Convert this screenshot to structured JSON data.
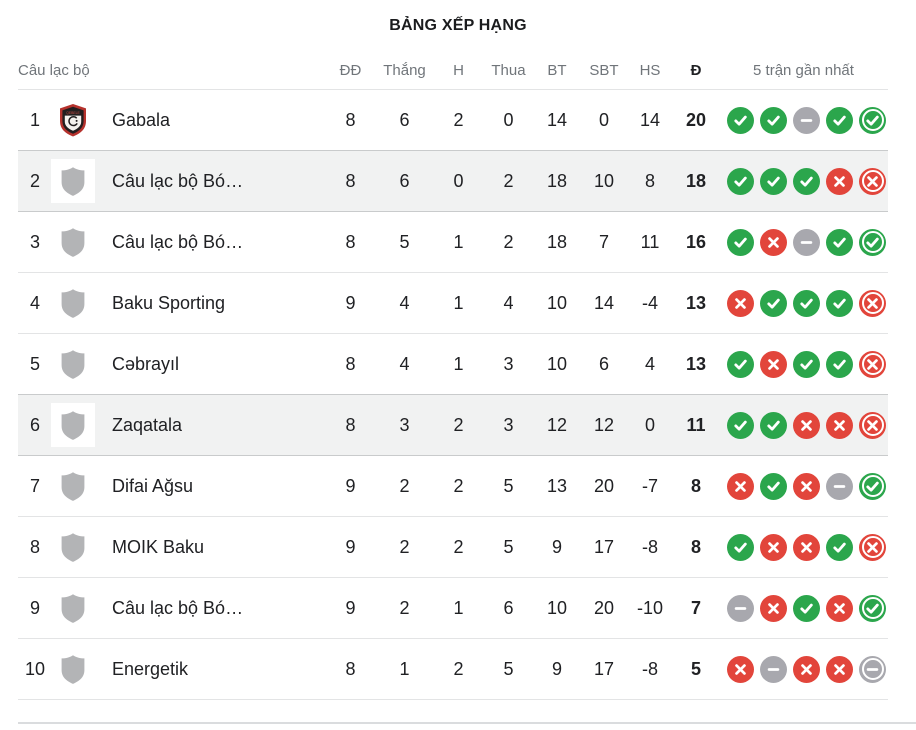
{
  "title": "BẢNG XẾP HẠNG",
  "columns": {
    "club": "Câu lạc bộ",
    "played": "ĐĐ",
    "wins": "Thắng",
    "draws": "H",
    "losses": "Thua",
    "goals_for": "BT",
    "goals_against": "SBT",
    "goal_diff": "HS",
    "points": "Đ",
    "form": "5 trận gần nhất"
  },
  "colors": {
    "win": "#2ba64c",
    "loss": "#e2453b",
    "draw": "#a8a8ae",
    "highlight": "#f1f2f2"
  },
  "table": {
    "rows": [
      {
        "rank": "1",
        "name": "Gabala",
        "logo": "gabala-crest",
        "highlighted": false,
        "played": "8",
        "wins": "6",
        "draws": "2",
        "losses": "0",
        "goals_for": "14",
        "goals_against": "0",
        "goal_diff": "14",
        "points": "20",
        "form": [
          "W",
          "W",
          "D",
          "W",
          "W"
        ]
      },
      {
        "rank": "2",
        "name": "Câu lạc bộ Bó…",
        "logo": "generic-shield",
        "highlighted": true,
        "played": "8",
        "wins": "6",
        "draws": "0",
        "losses": "2",
        "goals_for": "18",
        "goals_against": "10",
        "goal_diff": "8",
        "points": "18",
        "form": [
          "W",
          "W",
          "W",
          "L",
          "L"
        ]
      },
      {
        "rank": "3",
        "name": "Câu lạc bộ Bó…",
        "logo": "generic-shield",
        "highlighted": false,
        "played": "8",
        "wins": "5",
        "draws": "1",
        "losses": "2",
        "goals_for": "18",
        "goals_against": "7",
        "goal_diff": "11",
        "points": "16",
        "form": [
          "W",
          "L",
          "D",
          "W",
          "W"
        ]
      },
      {
        "rank": "4",
        "name": "Baku Sporting",
        "logo": "generic-shield",
        "highlighted": false,
        "played": "9",
        "wins": "4",
        "draws": "1",
        "losses": "4",
        "goals_for": "10",
        "goals_against": "14",
        "goal_diff": "-4",
        "points": "13",
        "form": [
          "L",
          "W",
          "W",
          "W",
          "L"
        ]
      },
      {
        "rank": "5",
        "name": "Cəbrayıl",
        "logo": "generic-shield",
        "highlighted": false,
        "played": "8",
        "wins": "4",
        "draws": "1",
        "losses": "3",
        "goals_for": "10",
        "goals_against": "6",
        "goal_diff": "4",
        "points": "13",
        "form": [
          "W",
          "L",
          "W",
          "W",
          "L"
        ]
      },
      {
        "rank": "6",
        "name": "Zaqatala",
        "logo": "generic-shield",
        "highlighted": true,
        "played": "8",
        "wins": "3",
        "draws": "2",
        "losses": "3",
        "goals_for": "12",
        "goals_against": "12",
        "goal_diff": "0",
        "points": "11",
        "form": [
          "W",
          "W",
          "L",
          "L",
          "L"
        ]
      },
      {
        "rank": "7",
        "name": "Difai Ağsu",
        "logo": "generic-shield",
        "highlighted": false,
        "played": "9",
        "wins": "2",
        "draws": "2",
        "losses": "5",
        "goals_for": "13",
        "goals_against": "20",
        "goal_diff": "-7",
        "points": "8",
        "form": [
          "L",
          "W",
          "L",
          "D",
          "W"
        ]
      },
      {
        "rank": "8",
        "name": "MOIK Baku",
        "logo": "generic-shield",
        "highlighted": false,
        "played": "9",
        "wins": "2",
        "draws": "2",
        "losses": "5",
        "goals_for": "9",
        "goals_against": "17",
        "goal_diff": "-8",
        "points": "8",
        "form": [
          "W",
          "L",
          "L",
          "W",
          "L"
        ]
      },
      {
        "rank": "9",
        "name": "Câu lạc bộ Bó…",
        "logo": "generic-shield",
        "highlighted": false,
        "played": "9",
        "wins": "2",
        "draws": "1",
        "losses": "6",
        "goals_for": "10",
        "goals_against": "20",
        "goal_diff": "-10",
        "points": "7",
        "form": [
          "D",
          "L",
          "W",
          "L",
          "W"
        ]
      },
      {
        "rank": "10",
        "name": "Energetik",
        "logo": "generic-shield",
        "highlighted": false,
        "played": "8",
        "wins": "1",
        "draws": "2",
        "losses": "5",
        "goals_for": "9",
        "goals_against": "17",
        "goal_diff": "-8",
        "points": "5",
        "form": [
          "L",
          "D",
          "L",
          "L",
          "D"
        ]
      }
    ]
  }
}
